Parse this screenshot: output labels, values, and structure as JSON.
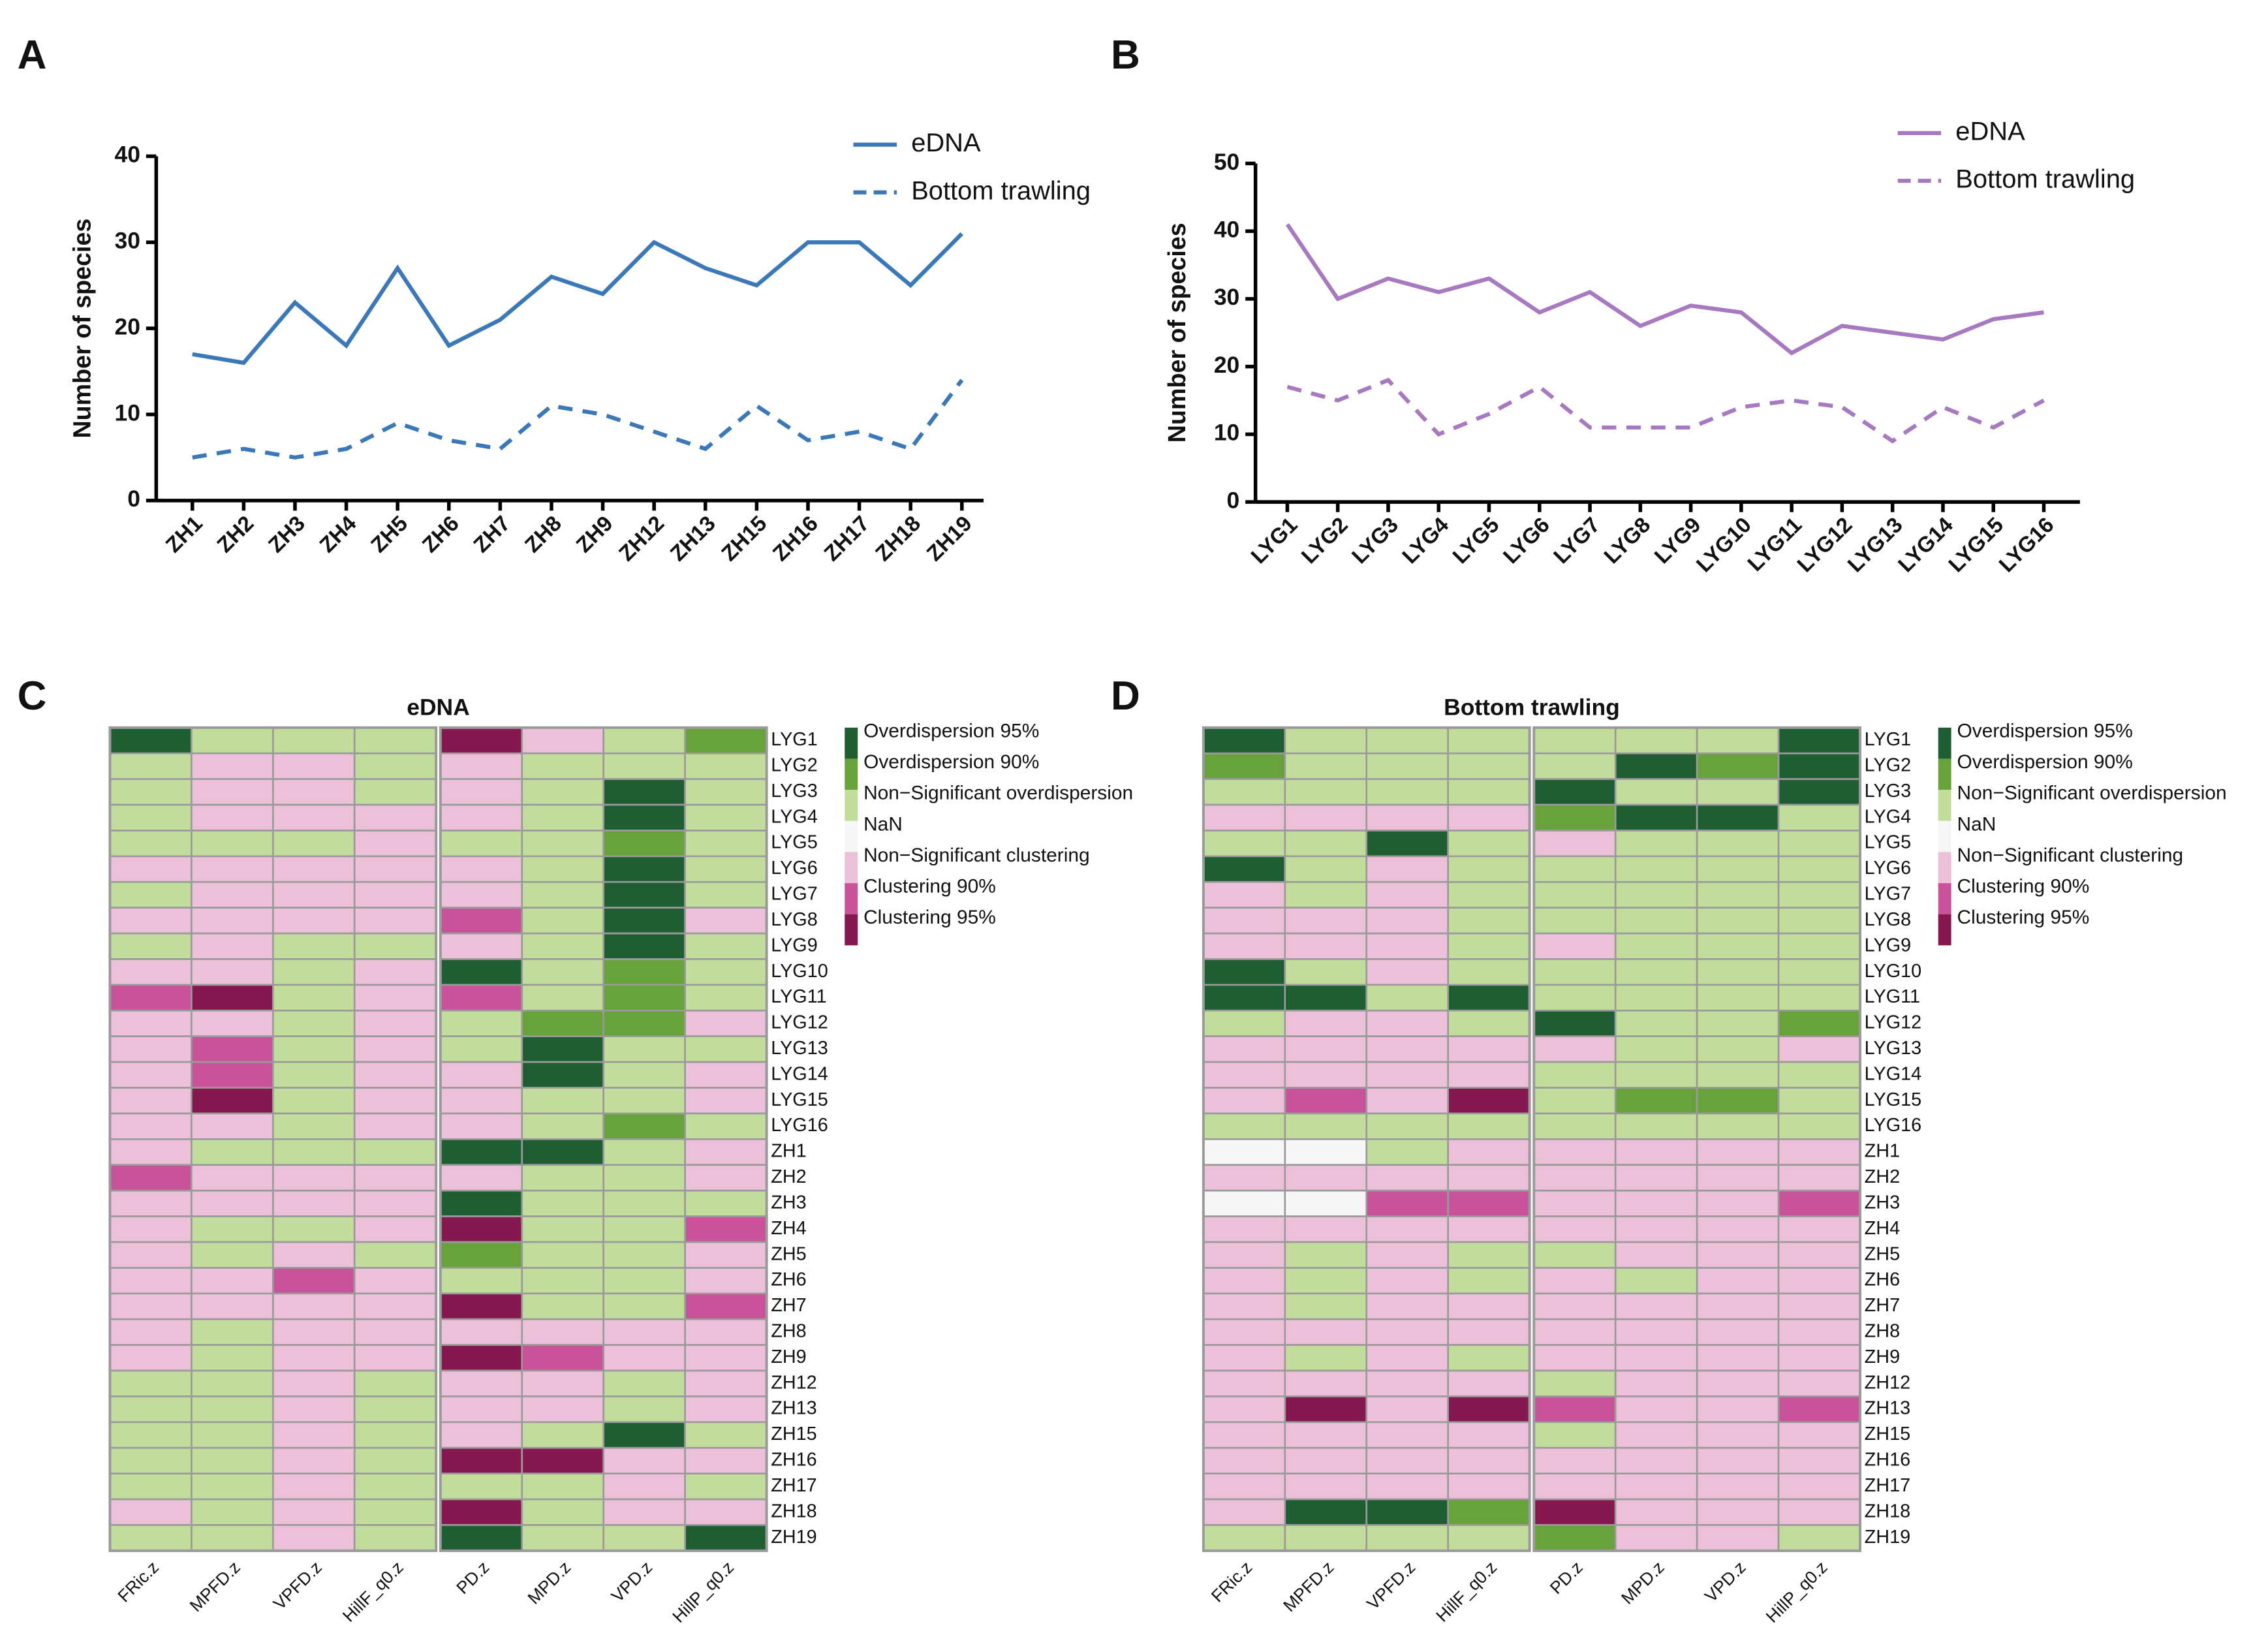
{
  "chart_data": [
    {
      "type": "line",
      "panel_label": "A",
      "y_label": "Number of species",
      "categories": [
        "ZH1",
        "ZH2",
        "ZH3",
        "ZH4",
        "ZH5",
        "ZH6",
        "ZH7",
        "ZH8",
        "ZH9",
        "ZH12",
        "ZH13",
        "ZH15",
        "ZH16",
        "ZH17",
        "ZH18",
        "ZH19"
      ],
      "series": [
        {
          "name": "eDNA",
          "color": "#3a78b8",
          "line_style": "solid",
          "values": [
            17,
            16,
            23,
            18,
            27,
            18,
            21,
            26,
            24,
            30,
            27,
            25,
            30,
            30,
            25,
            31
          ]
        },
        {
          "name": "Bottom trawling",
          "color": "#3a78b8",
          "line_style": "dashed",
          "values": [
            5,
            6,
            5,
            6,
            9,
            7,
            6,
            11,
            10,
            8,
            6,
            11,
            7,
            8,
            6,
            14
          ]
        }
      ],
      "ylim": [
        0,
        40
      ],
      "yticks": [
        0,
        10,
        20,
        30,
        40
      ]
    },
    {
      "type": "line",
      "panel_label": "B",
      "y_label": "Number of species",
      "categories": [
        "LYG1",
        "LYG2",
        "LYG3",
        "LYG4",
        "LYG5",
        "LYG6",
        "LYG7",
        "LYG8",
        "LYG9",
        "LYG10",
        "LYG11",
        "LYG12",
        "LYG13",
        "LYG14",
        "LYG15",
        "LYG16"
      ],
      "series": [
        {
          "name": "eDNA",
          "color": "#a679c0",
          "line_style": "solid",
          "values": [
            41,
            30,
            33,
            31,
            33,
            28,
            31,
            26,
            29,
            28,
            22,
            26,
            25,
            24,
            27,
            28
          ]
        },
        {
          "name": "Bottom trawling",
          "color": "#a679c0",
          "line_style": "dashed",
          "values": [
            17,
            15,
            18,
            10,
            13,
            17,
            11,
            11,
            11,
            14,
            15,
            14,
            9,
            14,
            11,
            15
          ]
        }
      ],
      "ylim": [
        0,
        50
      ],
      "yticks": [
        0,
        10,
        20,
        30,
        40,
        50
      ]
    },
    {
      "type": "heatmap",
      "panel_label": "C",
      "title": "eDNA",
      "columns": [
        "FRic.z",
        "MPFD.z",
        "VPFD.z",
        "HillF_q0.z",
        "PD.z",
        "MPD.z",
        "VPD.z",
        "HillP_q0.z"
      ],
      "rows": [
        "LYG1",
        "LYG2",
        "LYG3",
        "LYG4",
        "LYG5",
        "LYG6",
        "LYG7",
        "LYG8",
        "LYG9",
        "LYG10",
        "LYG11",
        "LYG12",
        "LYG13",
        "LYG14",
        "LYG15",
        "LYG16",
        "ZH1",
        "ZH2",
        "ZH3",
        "ZH4",
        "ZH5",
        "ZH6",
        "ZH7",
        "ZH8",
        "ZH9",
        "ZH12",
        "ZH13",
        "ZH15",
        "ZH16",
        "ZH17",
        "ZH18",
        "ZH19"
      ],
      "legend": [
        {
          "label": "Overdispersion 95%",
          "color": "#1f5e33"
        },
        {
          "label": "Overdispersion 90%",
          "color": "#67a23a"
        },
        {
          "label": "Non−Significant overdispersion",
          "color": "#c2dd9b"
        },
        {
          "label": "NaN",
          "color": "#f6f6f6"
        },
        {
          "label": "Non−Significant clustering",
          "color": "#ecc0d9"
        },
        {
          "label": "Clustering 90%",
          "color": "#c9539a"
        },
        {
          "label": "Clustering 95%",
          "color": "#85184f"
        }
      ],
      "values": [
        [
          0,
          2,
          2,
          2,
          6,
          4,
          2,
          1
        ],
        [
          2,
          4,
          4,
          2,
          4,
          2,
          2,
          2
        ],
        [
          2,
          4,
          4,
          2,
          4,
          2,
          0,
          2
        ],
        [
          2,
          4,
          4,
          4,
          4,
          2,
          0,
          2
        ],
        [
          2,
          2,
          2,
          4,
          2,
          2,
          1,
          2
        ],
        [
          4,
          4,
          4,
          4,
          4,
          2,
          0,
          2
        ],
        [
          2,
          4,
          4,
          4,
          4,
          2,
          0,
          2
        ],
        [
          4,
          4,
          4,
          4,
          5,
          2,
          0,
          4
        ],
        [
          2,
          4,
          2,
          2,
          4,
          2,
          0,
          2
        ],
        [
          4,
          4,
          2,
          4,
          0,
          2,
          1,
          2
        ],
        [
          5,
          6,
          2,
          4,
          5,
          2,
          1,
          2
        ],
        [
          4,
          4,
          2,
          4,
          2,
          1,
          1,
          4
        ],
        [
          4,
          5,
          2,
          4,
          2,
          0,
          2,
          2
        ],
        [
          4,
          5,
          2,
          4,
          4,
          0,
          2,
          4
        ],
        [
          4,
          6,
          2,
          4,
          4,
          2,
          2,
          4
        ],
        [
          4,
          4,
          2,
          4,
          4,
          2,
          1,
          2
        ],
        [
          4,
          2,
          2,
          2,
          0,
          0,
          2,
          4
        ],
        [
          5,
          4,
          4,
          4,
          4,
          2,
          2,
          4
        ],
        [
          4,
          4,
          4,
          4,
          0,
          2,
          2,
          2
        ],
        [
          4,
          2,
          2,
          4,
          6,
          2,
          2,
          5
        ],
        [
          4,
          2,
          4,
          2,
          1,
          2,
          2,
          4
        ],
        [
          4,
          4,
          5,
          4,
          2,
          2,
          2,
          4
        ],
        [
          4,
          4,
          4,
          4,
          6,
          2,
          2,
          5
        ],
        [
          4,
          2,
          4,
          4,
          4,
          4,
          4,
          4
        ],
        [
          4,
          2,
          4,
          4,
          6,
          5,
          4,
          4
        ],
        [
          2,
          2,
          4,
          2,
          4,
          4,
          2,
          4
        ],
        [
          2,
          2,
          4,
          2,
          4,
          4,
          2,
          4
        ],
        [
          2,
          2,
          4,
          2,
          4,
          2,
          0,
          2
        ],
        [
          2,
          2,
          4,
          2,
          6,
          6,
          4,
          4
        ],
        [
          2,
          2,
          4,
          2,
          2,
          2,
          4,
          2
        ],
        [
          4,
          2,
          4,
          2,
          6,
          2,
          4,
          4
        ],
        [
          2,
          2,
          4,
          2,
          0,
          2,
          2,
          0
        ]
      ]
    },
    {
      "type": "heatmap",
      "panel_label": "D",
      "title": "Bottom trawling",
      "columns": [
        "FRic.z",
        "MPFD.z",
        "VPFD.z",
        "HillF_q0.z",
        "PD.z",
        "MPD.z",
        "VPD.z",
        "HillP_q0.z"
      ],
      "rows": [
        "LYG1",
        "LYG2",
        "LYG3",
        "LYG4",
        "LYG5",
        "LYG6",
        "LYG7",
        "LYG8",
        "LYG9",
        "LYG10",
        "LYG11",
        "LYG12",
        "LYG13",
        "LYG14",
        "LYG15",
        "LYG16",
        "ZH1",
        "ZH2",
        "ZH3",
        "ZH4",
        "ZH5",
        "ZH6",
        "ZH7",
        "ZH8",
        "ZH9",
        "ZH12",
        "ZH13",
        "ZH15",
        "ZH16",
        "ZH17",
        "ZH18",
        "ZH19"
      ],
      "legend": [
        {
          "label": "Overdispersion 95%",
          "color": "#1f5e33"
        },
        {
          "label": "Overdispersion 90%",
          "color": "#67a23a"
        },
        {
          "label": "Non−Significant overdispersion",
          "color": "#c2dd9b"
        },
        {
          "label": "NaN",
          "color": "#f6f6f6"
        },
        {
          "label": "Non−Significant clustering",
          "color": "#ecc0d9"
        },
        {
          "label": "Clustering 90%",
          "color": "#c9539a"
        },
        {
          "label": "Clustering 95%",
          "color": "#85184f"
        }
      ],
      "values": [
        [
          0,
          2,
          2,
          2,
          2,
          2,
          2,
          0
        ],
        [
          1,
          2,
          2,
          2,
          2,
          0,
          1,
          0
        ],
        [
          2,
          2,
          2,
          2,
          0,
          2,
          2,
          0
        ],
        [
          4,
          4,
          4,
          4,
          1,
          0,
          0,
          2
        ],
        [
          2,
          2,
          0,
          2,
          4,
          2,
          2,
          2
        ],
        [
          0,
          2,
          4,
          2,
          2,
          2,
          2,
          2
        ],
        [
          4,
          2,
          4,
          2,
          2,
          2,
          2,
          2
        ],
        [
          4,
          4,
          4,
          2,
          2,
          2,
          2,
          2
        ],
        [
          4,
          4,
          4,
          2,
          4,
          2,
          2,
          2
        ],
        [
          0,
          2,
          4,
          2,
          2,
          2,
          2,
          2
        ],
        [
          0,
          0,
          2,
          0,
          2,
          2,
          2,
          2
        ],
        [
          2,
          4,
          4,
          2,
          0,
          2,
          2,
          1
        ],
        [
          4,
          4,
          4,
          4,
          4,
          2,
          2,
          4
        ],
        [
          4,
          4,
          4,
          4,
          2,
          2,
          2,
          2
        ],
        [
          4,
          5,
          4,
          6,
          2,
          1,
          1,
          2
        ],
        [
          2,
          2,
          2,
          2,
          2,
          2,
          2,
          2
        ],
        [
          3,
          3,
          2,
          4,
          4,
          4,
          4,
          4
        ],
        [
          4,
          4,
          4,
          4,
          4,
          4,
          4,
          4
        ],
        [
          3,
          3,
          5,
          5,
          4,
          4,
          4,
          5
        ],
        [
          4,
          4,
          4,
          4,
          4,
          4,
          4,
          4
        ],
        [
          4,
          2,
          4,
          2,
          2,
          4,
          4,
          4
        ],
        [
          4,
          2,
          4,
          2,
          4,
          2,
          4,
          4
        ],
        [
          4,
          2,
          4,
          4,
          4,
          4,
          4,
          4
        ],
        [
          4,
          4,
          4,
          4,
          4,
          4,
          4,
          4
        ],
        [
          4,
          2,
          4,
          2,
          4,
          4,
          4,
          4
        ],
        [
          4,
          4,
          4,
          4,
          2,
          4,
          4,
          4
        ],
        [
          4,
          6,
          4,
          6,
          5,
          4,
          4,
          5
        ],
        [
          4,
          4,
          4,
          4,
          2,
          4,
          4,
          4
        ],
        [
          4,
          4,
          4,
          4,
          4,
          4,
          4,
          4
        ],
        [
          4,
          4,
          4,
          4,
          4,
          4,
          4,
          4
        ],
        [
          4,
          0,
          0,
          1,
          6,
          4,
          4,
          4
        ],
        [
          2,
          2,
          2,
          2,
          1,
          4,
          4,
          2
        ]
      ]
    }
  ]
}
